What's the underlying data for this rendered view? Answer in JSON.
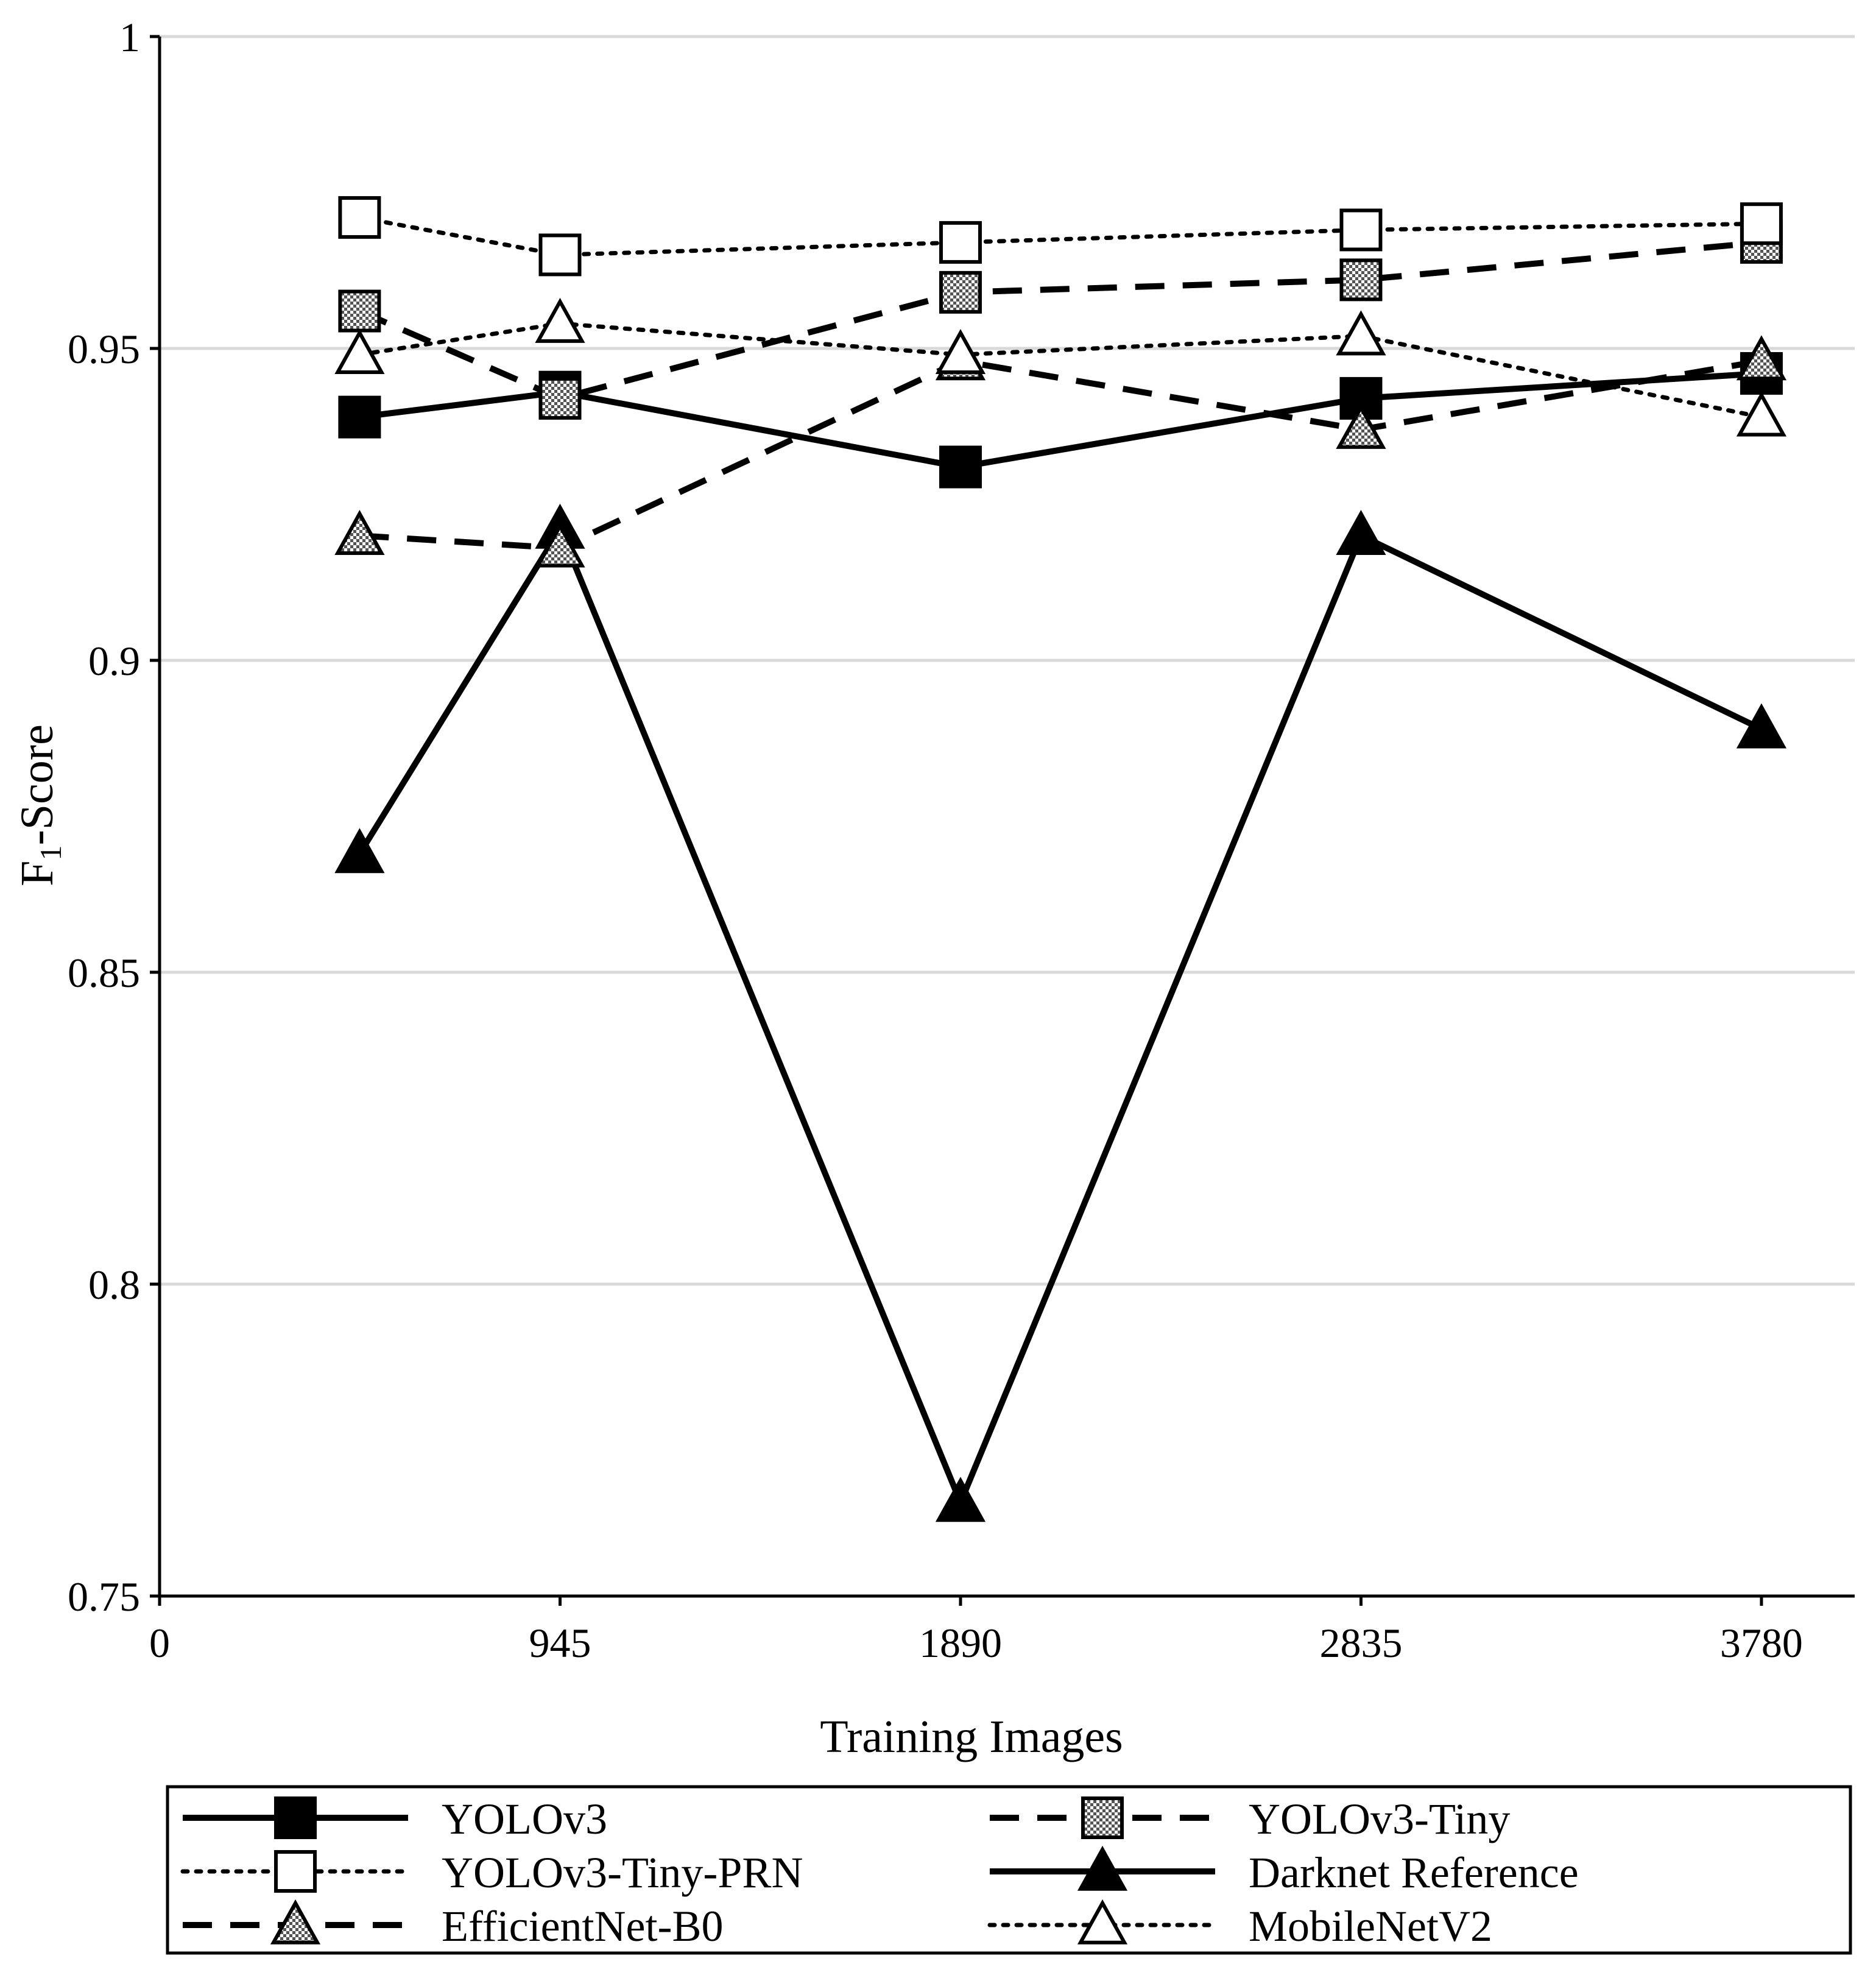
{
  "chart_data": {
    "type": "line",
    "title": "",
    "xlabel": "Training Images",
    "ylabel_main": "F",
    "ylabel_sub": "1",
    "ylabel_rest": "-Score",
    "xlim": [
      0,
      4000
    ],
    "ylim": [
      0.75,
      1
    ],
    "x_ticks": [
      {
        "value": 0,
        "label": "0"
      },
      {
        "value": 945,
        "label": "945"
      },
      {
        "value": 1890,
        "label": "1890"
      },
      {
        "value": 2835,
        "label": "2835"
      },
      {
        "value": 3780,
        "label": "3780"
      }
    ],
    "y_ticks": [
      {
        "value": 0.75,
        "label": "0.75"
      },
      {
        "value": 0.8,
        "label": "0.8"
      },
      {
        "value": 0.85,
        "label": "0.85"
      },
      {
        "value": 0.9,
        "label": "0.9"
      },
      {
        "value": 0.95,
        "label": "0.95"
      },
      {
        "value": 1,
        "label": "1"
      }
    ],
    "grid": true,
    "legend_position": "bottom",
    "x": [
      472,
      945,
      1890,
      2835,
      3780
    ],
    "series": [
      {
        "name": "YOLOv3",
        "key": "yolov3",
        "line": "solid",
        "marker": "square",
        "fill": "black",
        "values": [
          0.939,
          0.943,
          0.931,
          0.942,
          0.946
        ]
      },
      {
        "name": "YOLOv3-Tiny",
        "key": "yolov3-tiny",
        "line": "dashed",
        "marker": "square",
        "fill": "hatched",
        "values": [
          0.956,
          0.942,
          0.959,
          0.961,
          0.967
        ]
      },
      {
        "name": "YOLOv3-Tiny-PRN",
        "key": "yolov3-tiny-prn",
        "line": "dotted",
        "marker": "square",
        "fill": "white",
        "values": [
          0.971,
          0.965,
          0.967,
          0.969,
          0.97
        ]
      },
      {
        "name": "Darknet Reference",
        "key": "darknet-reference",
        "line": "solid",
        "marker": "triangle",
        "fill": "black",
        "values": [
          0.869,
          0.921,
          0.765,
          0.92,
          0.889
        ]
      },
      {
        "name": "EfficientNet-B0",
        "key": "efficientnet-b0",
        "line": "dashed",
        "marker": "triangle",
        "fill": "hatched",
        "values": [
          0.92,
          0.918,
          0.948,
          0.937,
          0.948
        ]
      },
      {
        "name": "MobileNetV2",
        "key": "mobilenetv2",
        "line": "dotted",
        "marker": "triangle",
        "fill": "white",
        "values": [
          0.949,
          0.954,
          0.949,
          0.952,
          0.939
        ]
      }
    ]
  }
}
